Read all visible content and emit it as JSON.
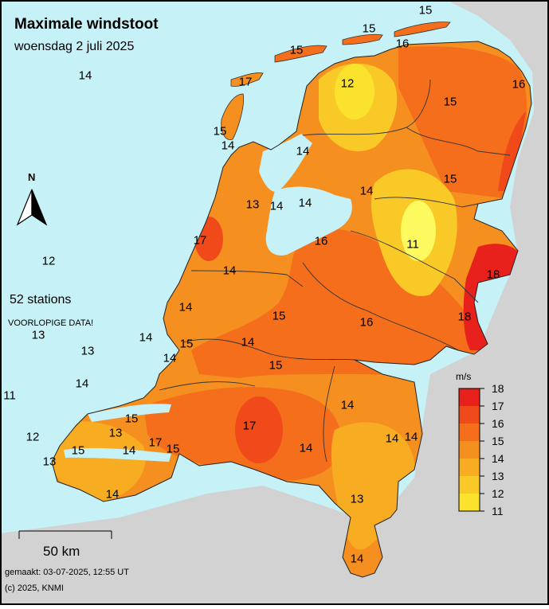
{
  "title": "Maximale windstoot",
  "subtitle": "woensdag 2 juli 2025",
  "stations_text": "52 stations",
  "preliminary_text": "VOORLOPIGE DATA!",
  "north_label": "N",
  "scale_label": "50 km",
  "made_text": "gemaakt: 03-07-2025, 12:55 UT",
  "copyright_text": "(c) 2025, KNMI",
  "legend": {
    "unit": "m/s",
    "values": [
      "18",
      "17",
      "16",
      "15",
      "14",
      "13",
      "12",
      "11"
    ],
    "colors": [
      "#e8211c",
      "#f04a1a",
      "#f46e1c",
      "#f58f1f",
      "#f7ac22",
      "#f9c927",
      "#fbe22d",
      "#fdfa60"
    ]
  },
  "colors": {
    "sea": "#c6f1f7",
    "land_outside": "#d2d2d2",
    "frame": "#000000"
  },
  "station_values": [
    "15",
    "15",
    "16",
    "15",
    "17",
    "12",
    "16",
    "14",
    "15",
    "15",
    "14",
    "14",
    "14",
    "15",
    "13",
    "14",
    "14",
    "11",
    "17",
    "16",
    "14",
    "18",
    "12",
    "14",
    "15",
    "16",
    "18",
    "13",
    "13",
    "14",
    "14",
    "15",
    "14",
    "11",
    "14",
    "14",
    "12",
    "15",
    "13",
    "17",
    "15",
    "13",
    "15",
    "14",
    "17",
    "15",
    "14",
    "14",
    "13",
    "14",
    "14",
    "14"
  ]
}
